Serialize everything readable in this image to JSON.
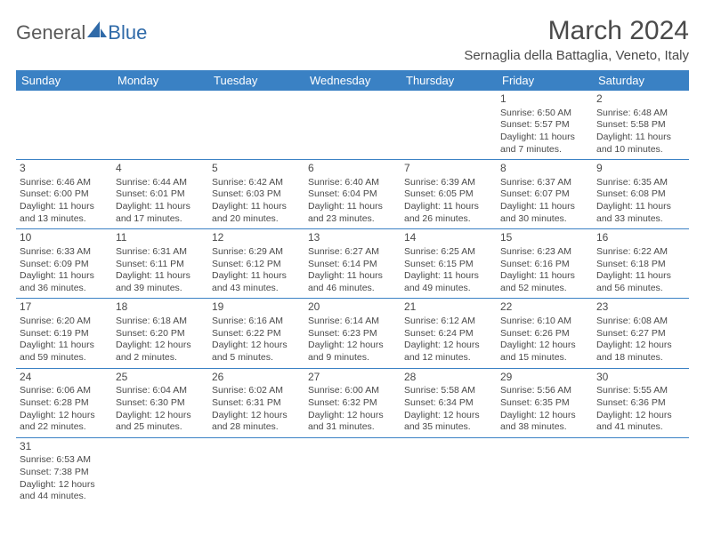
{
  "brand": {
    "part1": "General",
    "part2": "Blue"
  },
  "title": "March 2024",
  "location": "Sernaglia della Battaglia, Veneto, Italy",
  "colors": {
    "header_bg": "#3a81c4",
    "header_text": "#ffffff",
    "border": "#3a81c4",
    "text": "#4a4a4a",
    "logo_gray": "#5a5a5a",
    "logo_blue": "#2f6aa8"
  },
  "day_headers": [
    "Sunday",
    "Monday",
    "Tuesday",
    "Wednesday",
    "Thursday",
    "Friday",
    "Saturday"
  ],
  "weeks": [
    [
      null,
      null,
      null,
      null,
      null,
      {
        "n": "1",
        "sr": "Sunrise: 6:50 AM",
        "ss": "Sunset: 5:57 PM",
        "dl": "Daylight: 11 hours and 7 minutes."
      },
      {
        "n": "2",
        "sr": "Sunrise: 6:48 AM",
        "ss": "Sunset: 5:58 PM",
        "dl": "Daylight: 11 hours and 10 minutes."
      }
    ],
    [
      {
        "n": "3",
        "sr": "Sunrise: 6:46 AM",
        "ss": "Sunset: 6:00 PM",
        "dl": "Daylight: 11 hours and 13 minutes."
      },
      {
        "n": "4",
        "sr": "Sunrise: 6:44 AM",
        "ss": "Sunset: 6:01 PM",
        "dl": "Daylight: 11 hours and 17 minutes."
      },
      {
        "n": "5",
        "sr": "Sunrise: 6:42 AM",
        "ss": "Sunset: 6:03 PM",
        "dl": "Daylight: 11 hours and 20 minutes."
      },
      {
        "n": "6",
        "sr": "Sunrise: 6:40 AM",
        "ss": "Sunset: 6:04 PM",
        "dl": "Daylight: 11 hours and 23 minutes."
      },
      {
        "n": "7",
        "sr": "Sunrise: 6:39 AM",
        "ss": "Sunset: 6:05 PM",
        "dl": "Daylight: 11 hours and 26 minutes."
      },
      {
        "n": "8",
        "sr": "Sunrise: 6:37 AM",
        "ss": "Sunset: 6:07 PM",
        "dl": "Daylight: 11 hours and 30 minutes."
      },
      {
        "n": "9",
        "sr": "Sunrise: 6:35 AM",
        "ss": "Sunset: 6:08 PM",
        "dl": "Daylight: 11 hours and 33 minutes."
      }
    ],
    [
      {
        "n": "10",
        "sr": "Sunrise: 6:33 AM",
        "ss": "Sunset: 6:09 PM",
        "dl": "Daylight: 11 hours and 36 minutes."
      },
      {
        "n": "11",
        "sr": "Sunrise: 6:31 AM",
        "ss": "Sunset: 6:11 PM",
        "dl": "Daylight: 11 hours and 39 minutes."
      },
      {
        "n": "12",
        "sr": "Sunrise: 6:29 AM",
        "ss": "Sunset: 6:12 PM",
        "dl": "Daylight: 11 hours and 43 minutes."
      },
      {
        "n": "13",
        "sr": "Sunrise: 6:27 AM",
        "ss": "Sunset: 6:14 PM",
        "dl": "Daylight: 11 hours and 46 minutes."
      },
      {
        "n": "14",
        "sr": "Sunrise: 6:25 AM",
        "ss": "Sunset: 6:15 PM",
        "dl": "Daylight: 11 hours and 49 minutes."
      },
      {
        "n": "15",
        "sr": "Sunrise: 6:23 AM",
        "ss": "Sunset: 6:16 PM",
        "dl": "Daylight: 11 hours and 52 minutes."
      },
      {
        "n": "16",
        "sr": "Sunrise: 6:22 AM",
        "ss": "Sunset: 6:18 PM",
        "dl": "Daylight: 11 hours and 56 minutes."
      }
    ],
    [
      {
        "n": "17",
        "sr": "Sunrise: 6:20 AM",
        "ss": "Sunset: 6:19 PM",
        "dl": "Daylight: 11 hours and 59 minutes."
      },
      {
        "n": "18",
        "sr": "Sunrise: 6:18 AM",
        "ss": "Sunset: 6:20 PM",
        "dl": "Daylight: 12 hours and 2 minutes."
      },
      {
        "n": "19",
        "sr": "Sunrise: 6:16 AM",
        "ss": "Sunset: 6:22 PM",
        "dl": "Daylight: 12 hours and 5 minutes."
      },
      {
        "n": "20",
        "sr": "Sunrise: 6:14 AM",
        "ss": "Sunset: 6:23 PM",
        "dl": "Daylight: 12 hours and 9 minutes."
      },
      {
        "n": "21",
        "sr": "Sunrise: 6:12 AM",
        "ss": "Sunset: 6:24 PM",
        "dl": "Daylight: 12 hours and 12 minutes."
      },
      {
        "n": "22",
        "sr": "Sunrise: 6:10 AM",
        "ss": "Sunset: 6:26 PM",
        "dl": "Daylight: 12 hours and 15 minutes."
      },
      {
        "n": "23",
        "sr": "Sunrise: 6:08 AM",
        "ss": "Sunset: 6:27 PM",
        "dl": "Daylight: 12 hours and 18 minutes."
      }
    ],
    [
      {
        "n": "24",
        "sr": "Sunrise: 6:06 AM",
        "ss": "Sunset: 6:28 PM",
        "dl": "Daylight: 12 hours and 22 minutes."
      },
      {
        "n": "25",
        "sr": "Sunrise: 6:04 AM",
        "ss": "Sunset: 6:30 PM",
        "dl": "Daylight: 12 hours and 25 minutes."
      },
      {
        "n": "26",
        "sr": "Sunrise: 6:02 AM",
        "ss": "Sunset: 6:31 PM",
        "dl": "Daylight: 12 hours and 28 minutes."
      },
      {
        "n": "27",
        "sr": "Sunrise: 6:00 AM",
        "ss": "Sunset: 6:32 PM",
        "dl": "Daylight: 12 hours and 31 minutes."
      },
      {
        "n": "28",
        "sr": "Sunrise: 5:58 AM",
        "ss": "Sunset: 6:34 PM",
        "dl": "Daylight: 12 hours and 35 minutes."
      },
      {
        "n": "29",
        "sr": "Sunrise: 5:56 AM",
        "ss": "Sunset: 6:35 PM",
        "dl": "Daylight: 12 hours and 38 minutes."
      },
      {
        "n": "30",
        "sr": "Sunrise: 5:55 AM",
        "ss": "Sunset: 6:36 PM",
        "dl": "Daylight: 12 hours and 41 minutes."
      }
    ],
    [
      {
        "n": "31",
        "sr": "Sunrise: 6:53 AM",
        "ss": "Sunset: 7:38 PM",
        "dl": "Daylight: 12 hours and 44 minutes."
      },
      null,
      null,
      null,
      null,
      null,
      null
    ]
  ]
}
